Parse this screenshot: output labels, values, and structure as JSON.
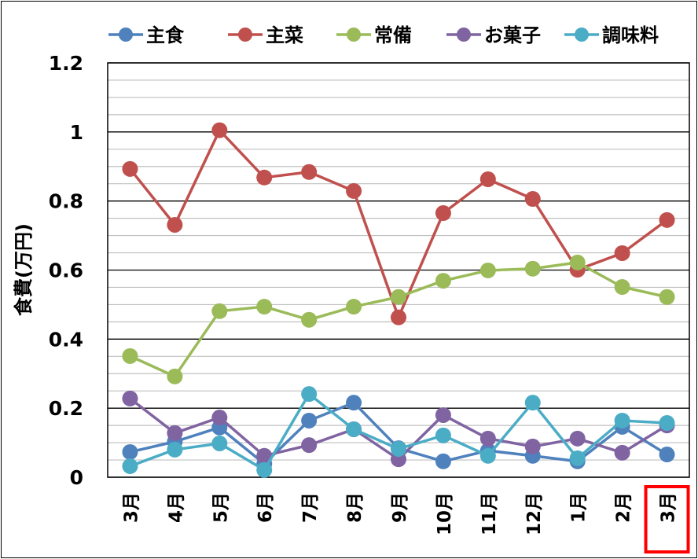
{
  "chart_data": {
    "type": "line",
    "title": "",
    "xlabel": "",
    "ylabel": "食費(万円)",
    "ylim": [
      0,
      1.2
    ],
    "yticks": [
      "0",
      "0.2",
      "0.4",
      "0.6",
      "0.8",
      "1",
      "1.2"
    ],
    "grid": true,
    "legend_position": "top",
    "categories": [
      "3月",
      "4月",
      "5月",
      "6月",
      "7月",
      "8月",
      "9月",
      "10月",
      "11月",
      "12月",
      "1月",
      "2月",
      "3月"
    ],
    "highlighted_category_index": 12,
    "highlight_color": "#ff0000",
    "series": [
      {
        "name": "主食",
        "color": "#4f81bd",
        "values": [
          0.073,
          0.103,
          0.144,
          0.039,
          0.164,
          0.216,
          0.084,
          0.046,
          0.077,
          0.062,
          0.046,
          0.146,
          0.066
        ]
      },
      {
        "name": "主菜",
        "color": "#c0504d",
        "values": [
          0.893,
          0.731,
          1.005,
          0.868,
          0.884,
          0.829,
          0.463,
          0.765,
          0.863,
          0.806,
          0.601,
          0.649,
          0.745
        ]
      },
      {
        "name": "常備",
        "color": "#9bbb59",
        "values": [
          0.351,
          0.292,
          0.481,
          0.494,
          0.456,
          0.494,
          0.522,
          0.569,
          0.599,
          0.604,
          0.622,
          0.551,
          0.522
        ]
      },
      {
        "name": "お菓子",
        "color": "#8064a2",
        "values": [
          0.228,
          0.128,
          0.173,
          0.062,
          0.093,
          0.139,
          0.052,
          0.18,
          0.112,
          0.089,
          0.112,
          0.071,
          0.15
        ]
      },
      {
        "name": "調味料",
        "color": "#4bacc6",
        "values": [
          0.032,
          0.08,
          0.098,
          0.021,
          0.241,
          0.139,
          0.082,
          0.121,
          0.062,
          0.216,
          0.055,
          0.164,
          0.157
        ]
      }
    ]
  }
}
